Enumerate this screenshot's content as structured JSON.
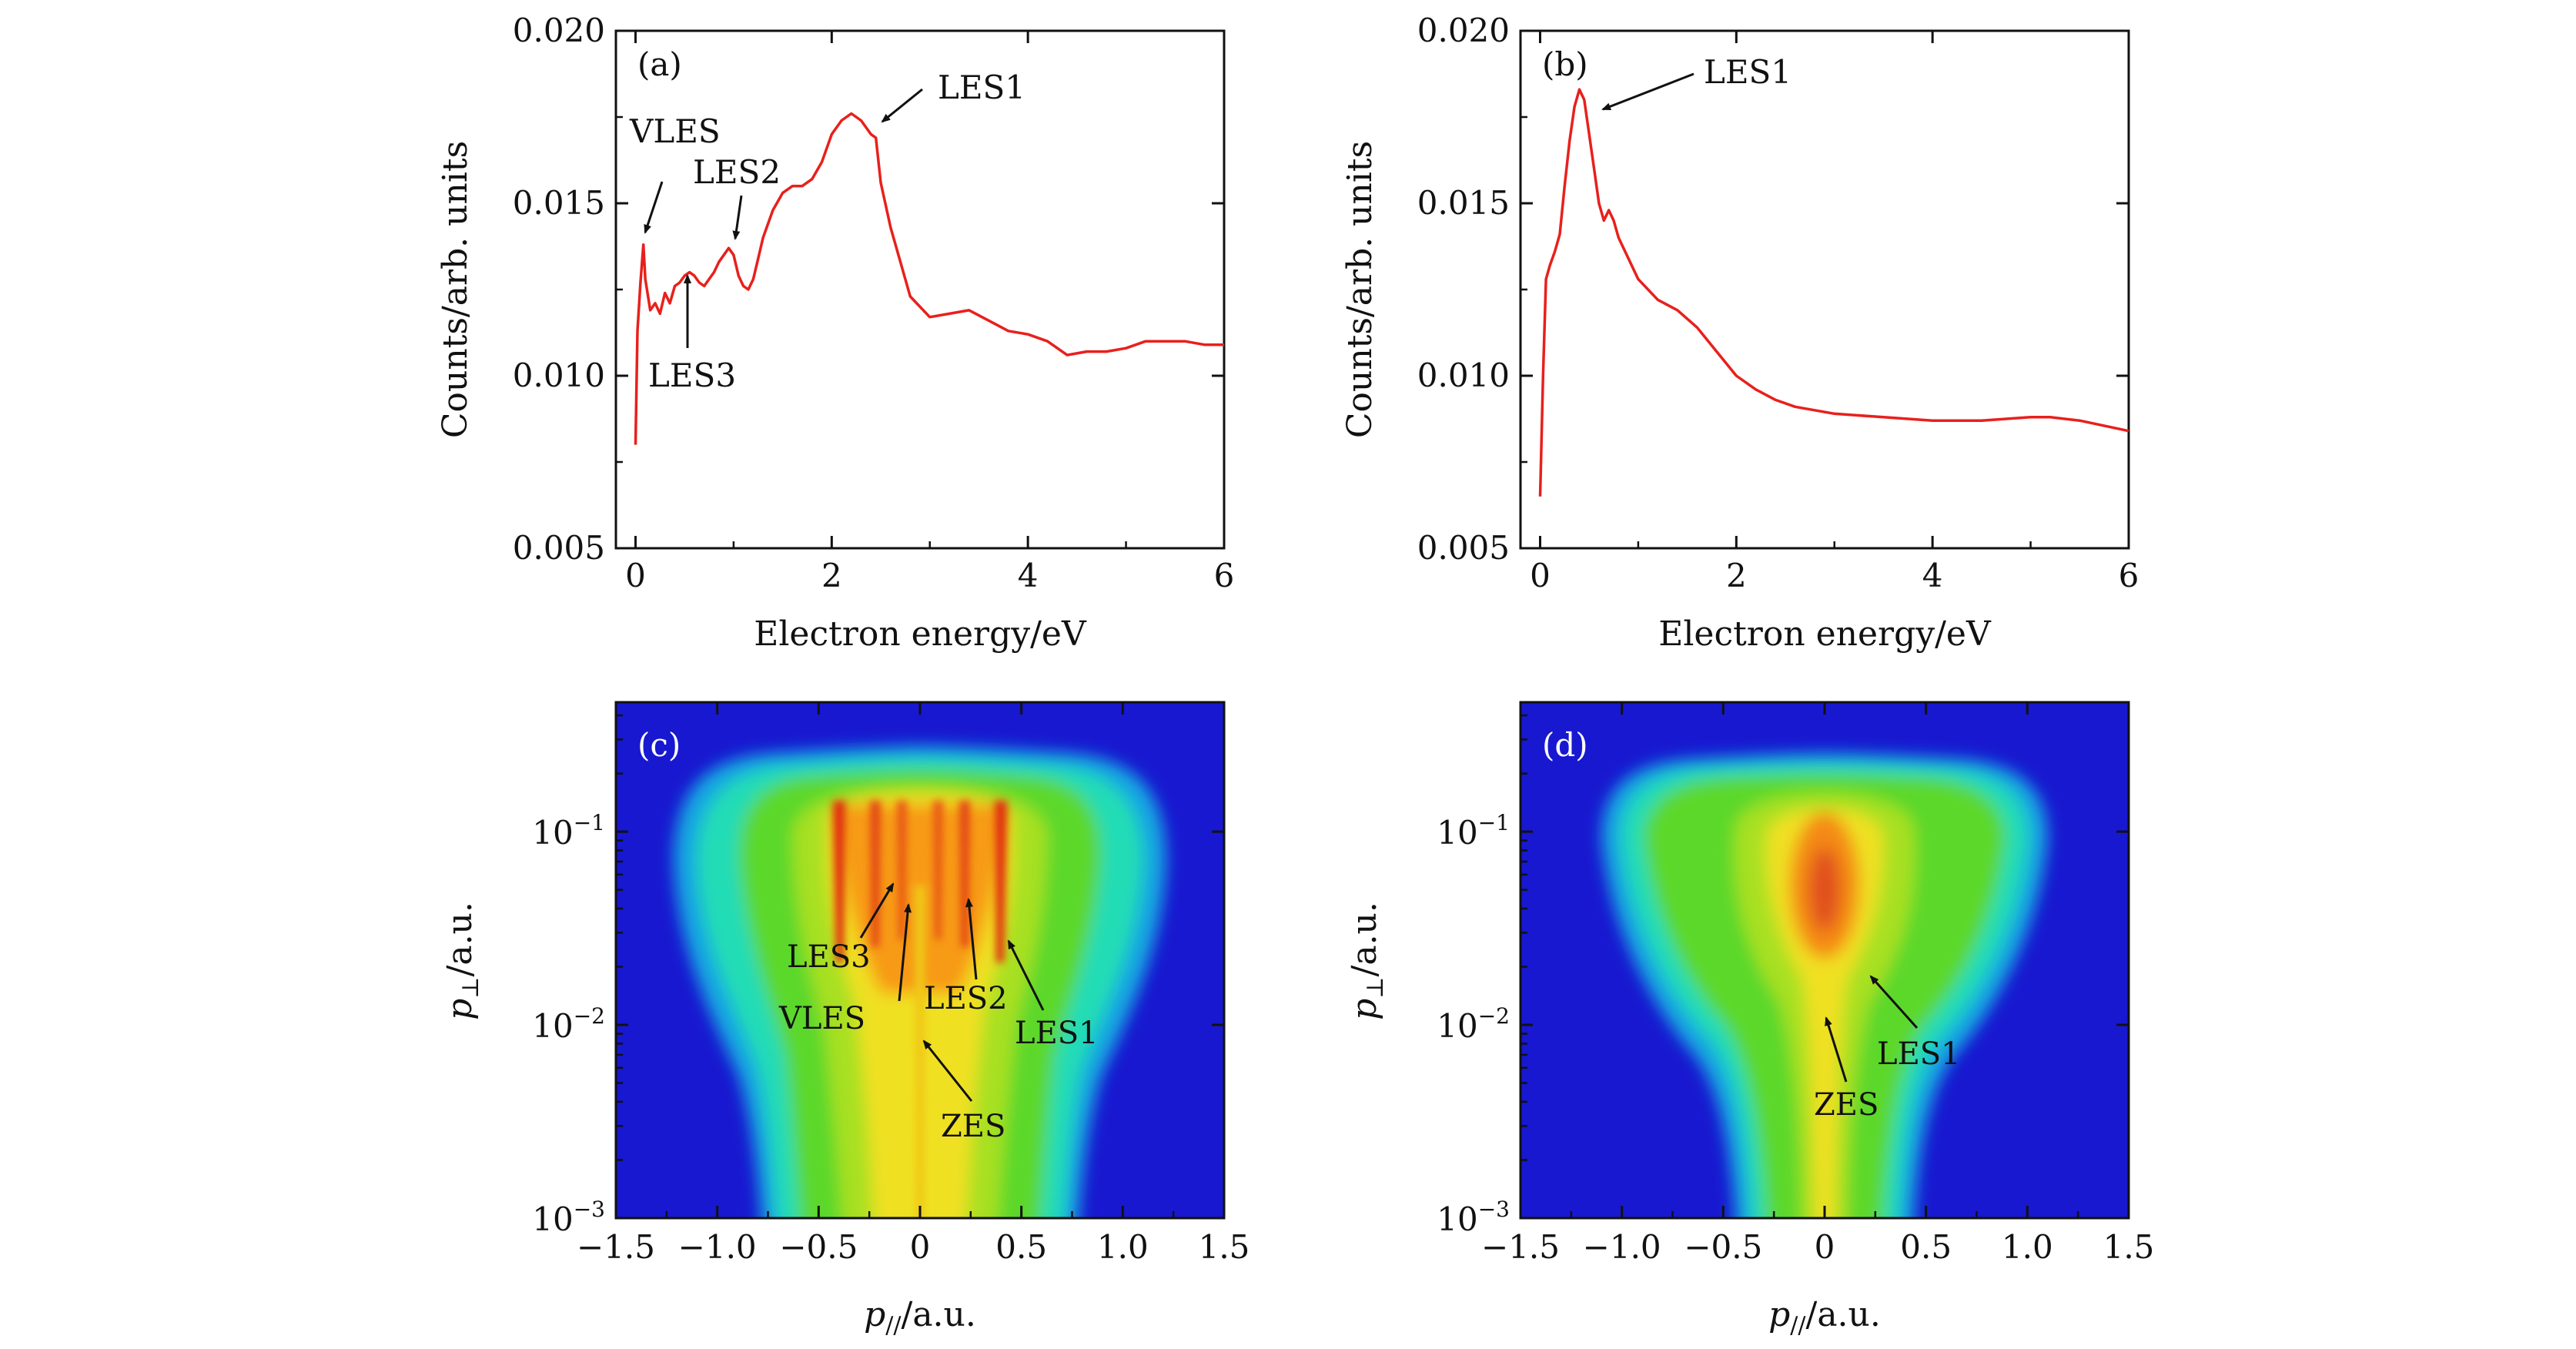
{
  "figure": {
    "panels": [
      "(a)",
      "(b)",
      "(c)",
      "(d)"
    ]
  },
  "chart_data": [
    {
      "id": "a",
      "type": "line",
      "panel_label": "(a)",
      "xlabel": "Electron energy/eV",
      "ylabel": "Counts/arb. units",
      "xlim": [
        -0.2,
        6
      ],
      "ylim": [
        0.005,
        0.02
      ],
      "xticks": [
        0,
        2,
        4,
        6
      ],
      "yticks": [
        0.005,
        0.01,
        0.015,
        0.02
      ],
      "ytick_labels": [
        "0.005",
        "0.010",
        "0.015",
        "0.020"
      ],
      "grid": false,
      "series": [
        {
          "color": "#e8201c",
          "x": [
            0.0,
            0.02,
            0.05,
            0.08,
            0.1,
            0.15,
            0.2,
            0.25,
            0.3,
            0.35,
            0.4,
            0.45,
            0.5,
            0.55,
            0.6,
            0.65,
            0.7,
            0.75,
            0.8,
            0.85,
            0.9,
            0.95,
            1.0,
            1.05,
            1.1,
            1.15,
            1.2,
            1.25,
            1.3,
            1.4,
            1.5,
            1.6,
            1.7,
            1.8,
            1.9,
            2.0,
            2.1,
            2.2,
            2.3,
            2.4,
            2.45,
            2.5,
            2.6,
            2.8,
            3.0,
            3.2,
            3.4,
            3.6,
            3.8,
            4.0,
            4.2,
            4.4,
            4.6,
            4.8,
            5.0,
            5.2,
            5.4,
            5.6,
            5.8,
            6.0
          ],
          "y": [
            0.008,
            0.0113,
            0.0127,
            0.0138,
            0.0128,
            0.0119,
            0.0121,
            0.0118,
            0.0124,
            0.0121,
            0.0126,
            0.0127,
            0.0129,
            0.013,
            0.0129,
            0.0127,
            0.0126,
            0.0128,
            0.013,
            0.0133,
            0.0135,
            0.0137,
            0.0135,
            0.0129,
            0.0126,
            0.0125,
            0.0128,
            0.0134,
            0.014,
            0.0148,
            0.0153,
            0.0155,
            0.0155,
            0.0157,
            0.0162,
            0.017,
            0.0174,
            0.0176,
            0.0174,
            0.017,
            0.0169,
            0.0156,
            0.0143,
            0.0123,
            0.0117,
            0.0118,
            0.0119,
            0.0116,
            0.0113,
            0.0112,
            0.011,
            0.0106,
            0.0107,
            0.0107,
            0.0108,
            0.011,
            0.011,
            0.011,
            0.0109,
            0.0109
          ]
        }
      ],
      "annotations": [
        "VLES",
        "LES2",
        "LES1",
        "LES3"
      ]
    },
    {
      "id": "b",
      "type": "line",
      "panel_label": "(b)",
      "xlabel": "Electron energy/eV",
      "ylabel": "Counts/arb. units",
      "xlim": [
        -0.2,
        6
      ],
      "ylim": [
        0.005,
        0.02
      ],
      "xticks": [
        0,
        2,
        4,
        6
      ],
      "yticks": [
        0.005,
        0.01,
        0.015,
        0.02
      ],
      "ytick_labels": [
        "0.005",
        "0.010",
        "0.015",
        "0.020"
      ],
      "grid": false,
      "series": [
        {
          "color": "#e8201c",
          "x": [
            0.0,
            0.03,
            0.06,
            0.1,
            0.15,
            0.2,
            0.25,
            0.3,
            0.35,
            0.4,
            0.45,
            0.5,
            0.55,
            0.6,
            0.65,
            0.7,
            0.75,
            0.8,
            0.9,
            1.0,
            1.2,
            1.4,
            1.6,
            1.8,
            2.0,
            2.2,
            2.4,
            2.6,
            2.8,
            3.0,
            3.5,
            4.0,
            4.5,
            5.0,
            5.2,
            5.5,
            6.0
          ],
          "y": [
            0.0065,
            0.01,
            0.0128,
            0.0132,
            0.0136,
            0.0141,
            0.0155,
            0.0168,
            0.0178,
            0.0183,
            0.018,
            0.017,
            0.016,
            0.015,
            0.0145,
            0.0148,
            0.0145,
            0.014,
            0.0134,
            0.0128,
            0.0122,
            0.0119,
            0.0114,
            0.0107,
            0.01,
            0.0096,
            0.0093,
            0.0091,
            0.009,
            0.0089,
            0.0088,
            0.0087,
            0.0087,
            0.0088,
            0.0088,
            0.0087,
            0.0084
          ]
        }
      ],
      "annotations": [
        "LES1"
      ]
    },
    {
      "id": "c",
      "type": "heatmap",
      "panel_label": "(c)",
      "xlabel_main": "p",
      "xlabel_sub": "//",
      "xlabel_unit": "/a.u.",
      "ylabel_main": "p",
      "ylabel_sub": "⊥",
      "ylabel_unit": "/a.u.",
      "xlim": [
        -1.5,
        1.5
      ],
      "ylim_log10": [
        -3,
        -0.33
      ],
      "yscale": "log",
      "xticks": [
        -1.5,
        -1.0,
        -0.5,
        0,
        0.5,
        1.0,
        1.5
      ],
      "xtick_labels": [
        "−1.5",
        "−1.0",
        "−0.5",
        "0",
        "0.5",
        "1.0",
        "1.5"
      ],
      "ytick_labels": [
        {
          "log10": -1,
          "base": "10",
          "exp": "−1"
        },
        {
          "log10": -2,
          "base": "10",
          "exp": "−2"
        },
        {
          "log10": -3,
          "base": "10",
          "exp": "−3"
        }
      ],
      "colormap": [
        "#1510d8",
        "#12a8e8",
        "#22e0b0",
        "#50d830",
        "#a8e020",
        "#f0e020",
        "#f89a10",
        "#e63a10",
        "#c81208"
      ],
      "background": "#1818d0",
      "annotations": [
        "LES3",
        "VLES",
        "LES2",
        "LES1",
        "ZES"
      ]
    },
    {
      "id": "d",
      "type": "heatmap",
      "panel_label": "(d)",
      "xlabel_main": "p",
      "xlabel_sub": "//",
      "xlabel_unit": "/a.u.",
      "ylabel_main": "p",
      "ylabel_sub": "⊥",
      "ylabel_unit": "/a.u.",
      "xlim": [
        -1.5,
        1.5
      ],
      "ylim_log10": [
        -3,
        -0.33
      ],
      "yscale": "log",
      "xticks": [
        -1.5,
        -1.0,
        -0.5,
        0,
        0.5,
        1.0,
        1.5
      ],
      "xtick_labels": [
        "−1.5",
        "−1.0",
        "−0.5",
        "0",
        "0.5",
        "1.0",
        "1.5"
      ],
      "ytick_labels": [
        {
          "log10": -1,
          "base": "10",
          "exp": "−1"
        },
        {
          "log10": -2,
          "base": "10",
          "exp": "−2"
        },
        {
          "log10": -3,
          "base": "10",
          "exp": "−3"
        }
      ],
      "colormap": [
        "#1510d8",
        "#12a8e8",
        "#22e0b0",
        "#50d830",
        "#a8e020",
        "#f0e020",
        "#f89a10",
        "#e63a10",
        "#c81208"
      ],
      "background": "#1818d0",
      "annotations": [
        "ZES",
        "LES1"
      ]
    }
  ]
}
